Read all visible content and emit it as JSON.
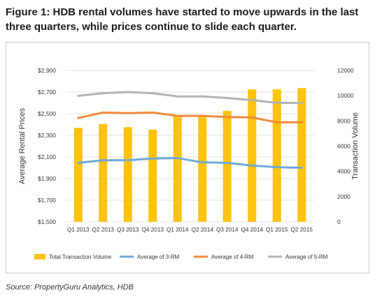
{
  "header": {
    "title_line1": "Figure 1: HDB rental volumes have started to move upwards in the last",
    "title_line2": "three quarters, while prices continue to slide each quarter."
  },
  "footer": {
    "source": "Source: PropertyGuru Analytics, HDB"
  },
  "chart_data": {
    "type": "bar+line",
    "title": "",
    "categories": [
      "Q1 2013",
      "Q2 2013",
      "Q3 2013",
      "Q4 2013",
      "Q1 2014",
      "Q2 2014",
      "Q3 2014",
      "Q4 2014",
      "Q1 2015",
      "Q2 2015"
    ],
    "ylabel_left": "Average Rental Prices",
    "ylabel_right": "Transaction Volume",
    "y_left": {
      "range": [
        1500,
        2900
      ],
      "ticks": [
        "$1,500",
        "$1,700",
        "$1,900",
        "$2,100",
        "$2,300",
        "$2,500",
        "$2,700",
        "$2,900"
      ]
    },
    "y_right": {
      "range": [
        0,
        12000
      ],
      "ticks": [
        "0",
        "2000",
        "4000",
        "6000",
        "8000",
        "10000",
        "12000"
      ]
    },
    "grid": "horizontal",
    "legend_position": "bottom",
    "series": [
      {
        "name": "Total Transaction Volume",
        "kind": "bar",
        "axis": "right",
        "color": "#FFC20E",
        "values": [
          7450,
          7750,
          7500,
          7300,
          8450,
          8450,
          8800,
          10500,
          10500,
          10600
        ]
      },
      {
        "name": "Average of 3-RM",
        "kind": "line",
        "axis": "left",
        "color": "#6FA8DC",
        "values": [
          2045,
          2070,
          2070,
          2085,
          2090,
          2050,
          2045,
          2020,
          2005,
          2000
        ]
      },
      {
        "name": "Average of 4-RM",
        "kind": "line",
        "axis": "left",
        "color": "#F08A3C",
        "values": [
          2460,
          2510,
          2505,
          2510,
          2480,
          2480,
          2470,
          2465,
          2420,
          2420
        ]
      },
      {
        "name": "Average of 5-RM",
        "kind": "line",
        "axis": "left",
        "color": "#B3B3B3",
        "values": [
          2665,
          2690,
          2700,
          2690,
          2660,
          2660,
          2645,
          2625,
          2600,
          2600
        ]
      }
    ]
  }
}
